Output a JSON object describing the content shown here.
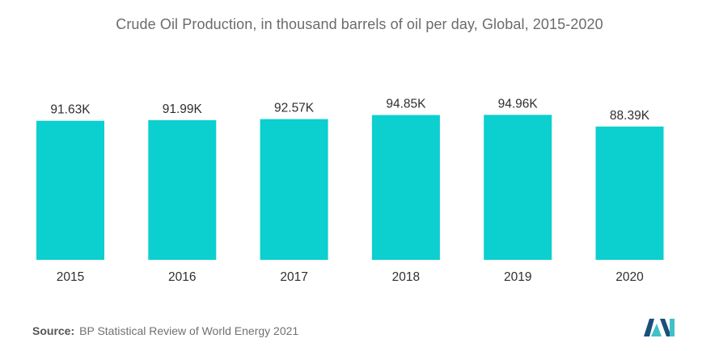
{
  "chart_data": {
    "type": "bar",
    "title": "Crude Oil Production, in thousand barrels of oil per day, Global, 2015-2020",
    "categories": [
      "2015",
      "2016",
      "2017",
      "2018",
      "2019",
      "2020"
    ],
    "values": [
      91.63,
      91.99,
      92.57,
      94.85,
      94.96,
      88.39
    ],
    "value_labels": [
      "91.63K",
      "91.99K",
      "92.57K",
      "94.85K",
      "94.96K",
      "88.39K"
    ],
    "xlabel": "",
    "ylabel": "",
    "grid": false,
    "legend": "none",
    "bar_color": "#0ccfcf"
  },
  "footer": {
    "source_key": "Source:",
    "source_text": "BP Statistical Review of World Energy 2021"
  },
  "brand": {
    "logo_icon": "mordor-intelligence-logo-icon",
    "logo_color_dark": "#1a4f7a",
    "logo_color_light": "#3fc1c9"
  }
}
